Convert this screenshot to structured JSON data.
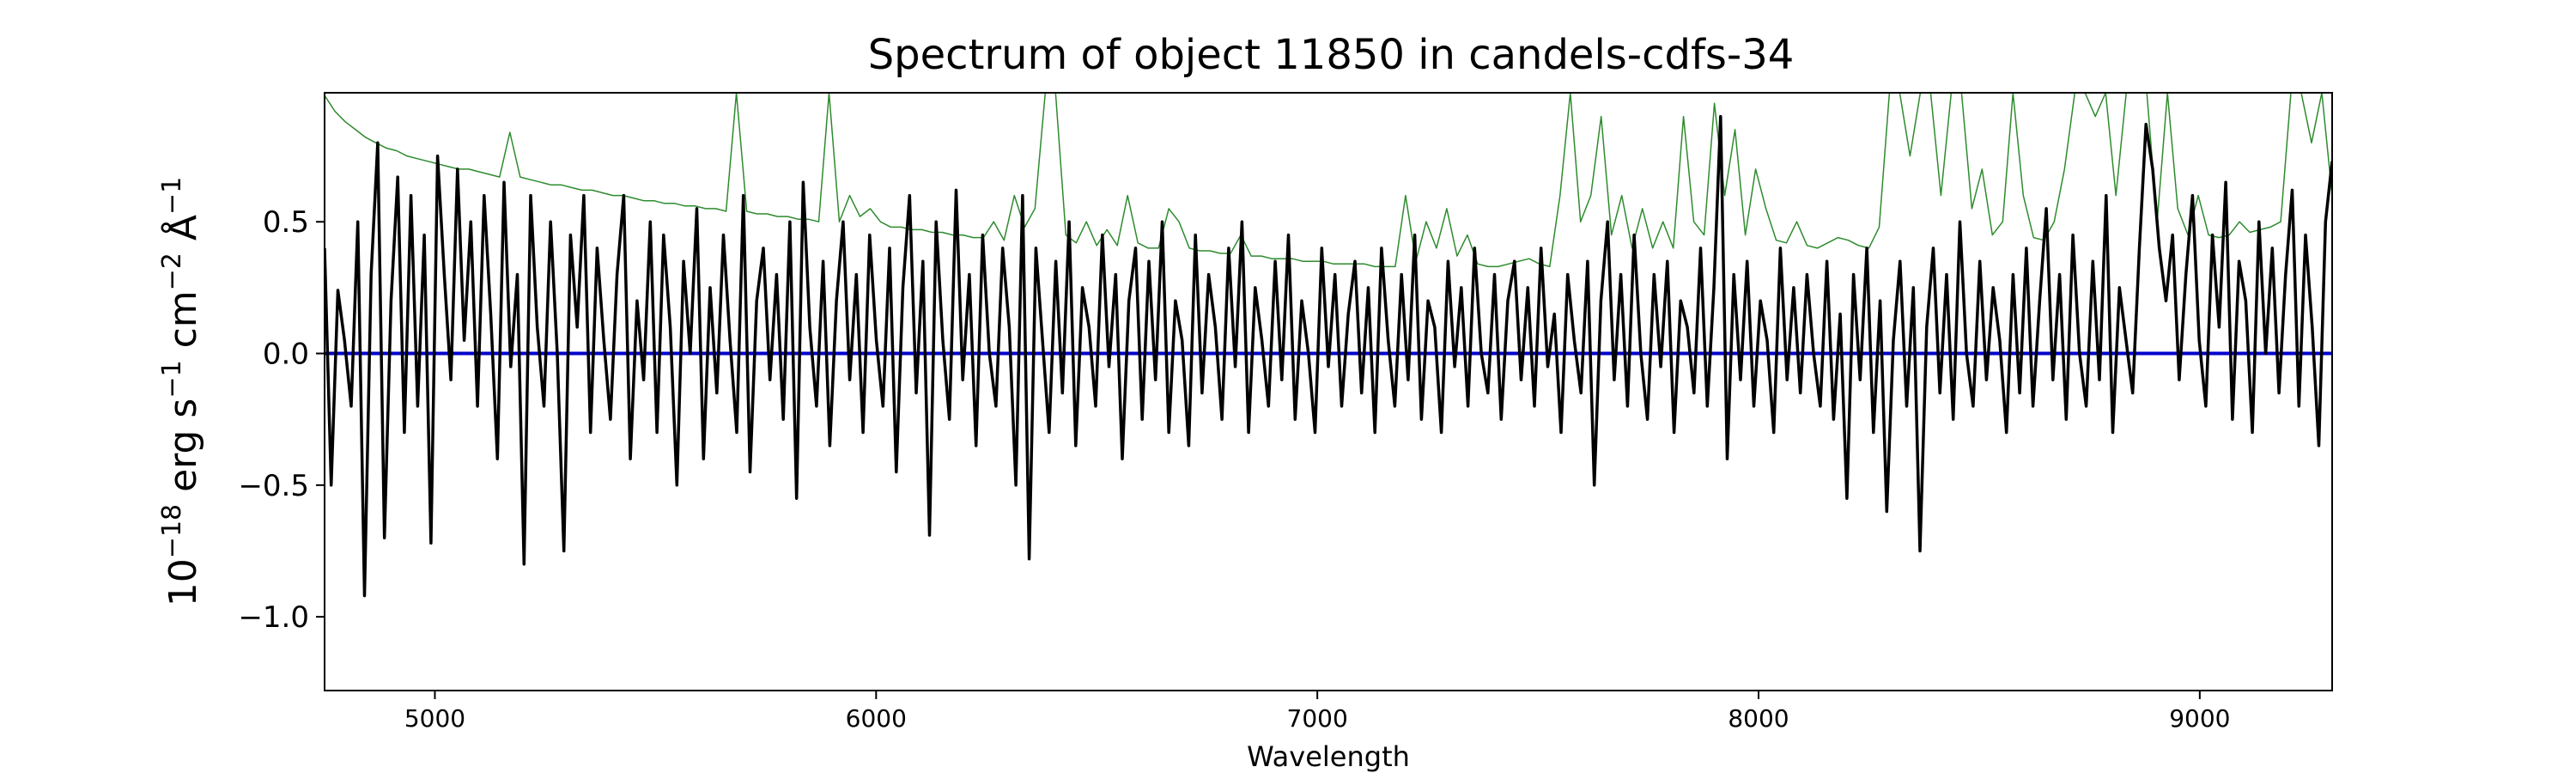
{
  "chart_data": {
    "type": "line",
    "title": "Spectrum of object 11850 in candels-cdfs-34",
    "xlabel": "Wavelength",
    "ylabel_parts": {
      "base": "10",
      "exp1": "−18",
      "unit1": " erg s",
      "exp2": "−1",
      "unit2": " cm",
      "exp3": "−2",
      "unit3": " Å",
      "exp4": "−1"
    },
    "xlim": [
      4750,
      9300
    ],
    "ylim": [
      -1.28,
      0.99
    ],
    "xticks": [
      5000,
      6000,
      7000,
      8000,
      9000
    ],
    "xtick_labels": [
      "5000",
      "6000",
      "7000",
      "8000",
      "9000"
    ],
    "yticks": [
      -1.0,
      -0.5,
      0.0,
      0.5
    ],
    "ytick_labels": [
      "−1.0",
      "−0.5",
      "0.0",
      "0.5"
    ],
    "grid": false,
    "series": [
      {
        "role": "flux",
        "color": "#000000",
        "x_start": 4750,
        "x_end": 9300,
        "values": [
          0.4,
          -0.5,
          0.24,
          0.05,
          -0.2,
          0.5,
          -0.92,
          0.3,
          0.8,
          -0.7,
          0.2,
          0.67,
          -0.3,
          0.6,
          -0.2,
          0.45,
          -0.72,
          0.75,
          0.3,
          -0.1,
          0.7,
          0.05,
          0.5,
          -0.2,
          0.6,
          0.15,
          -0.4,
          0.65,
          -0.05,
          0.3,
          -0.8,
          0.6,
          0.1,
          -0.2,
          0.5,
          0.0,
          -0.75,
          0.45,
          0.1,
          0.6,
          -0.3,
          0.4,
          0.05,
          -0.25,
          0.3,
          0.6,
          -0.4,
          0.2,
          -0.1,
          0.5,
          -0.3,
          0.45,
          0.1,
          -0.5,
          0.35,
          0.0,
          0.55,
          -0.4,
          0.25,
          -0.15,
          0.45,
          0.05,
          -0.3,
          0.6,
          -0.45,
          0.2,
          0.4,
          -0.1,
          0.3,
          -0.25,
          0.5,
          -0.55,
          0.65,
          0.1,
          -0.2,
          0.35,
          -0.35,
          0.2,
          0.5,
          -0.1,
          0.3,
          -0.3,
          0.45,
          0.05,
          -0.2,
          0.4,
          -0.45,
          0.25,
          0.6,
          -0.15,
          0.35,
          -0.69,
          0.5,
          0.05,
          -0.25,
          0.62,
          -0.1,
          0.3,
          -0.35,
          0.45,
          0.0,
          -0.2,
          0.4,
          0.1,
          -0.5,
          0.6,
          -0.78,
          0.4,
          0.05,
          -0.3,
          0.35,
          -0.15,
          0.5,
          -0.35,
          0.25,
          0.1,
          -0.2,
          0.45,
          -0.05,
          0.3,
          -0.4,
          0.2,
          0.4,
          -0.25,
          0.35,
          -0.1,
          0.5,
          -0.3,
          0.2,
          0.05,
          -0.35,
          0.45,
          -0.15,
          0.3,
          0.1,
          -0.25,
          0.4,
          -0.05,
          0.5,
          -0.3,
          0.25,
          0.05,
          -0.2,
          0.35,
          -0.1,
          0.45,
          -0.25,
          0.2,
          0.0,
          -0.3,
          0.4,
          -0.05,
          0.3,
          -0.2,
          0.15,
          0.35,
          -0.15,
          0.25,
          -0.3,
          0.4,
          0.05,
          -0.2,
          0.3,
          -0.1,
          0.45,
          -0.25,
          0.2,
          0.1,
          -0.3,
          0.35,
          -0.05,
          0.25,
          -0.2,
          0.4,
          0.0,
          -0.15,
          0.3,
          -0.25,
          0.2,
          0.35,
          -0.1,
          0.25,
          -0.2,
          0.4,
          -0.05,
          0.15,
          -0.3,
          0.3,
          0.05,
          -0.15,
          0.35,
          -0.5,
          0.2,
          0.5,
          -0.1,
          0.3,
          -0.2,
          0.45,
          0.0,
          -0.25,
          0.3,
          -0.05,
          0.35,
          -0.3,
          0.2,
          0.1,
          -0.15,
          0.4,
          -0.2,
          0.25,
          0.9,
          -0.4,
          0.3,
          -0.1,
          0.35,
          -0.2,
          0.2,
          0.05,
          -0.3,
          0.4,
          -0.1,
          0.25,
          -0.15,
          0.3,
          0.0,
          -0.2,
          0.35,
          -0.25,
          0.15,
          -0.55,
          0.3,
          -0.1,
          0.4,
          -0.3,
          0.2,
          -0.6,
          0.05,
          0.35,
          -0.2,
          0.25,
          -0.75,
          0.1,
          0.4,
          -0.15,
          0.3,
          -0.25,
          0.5,
          0.0,
          -0.2,
          0.35,
          -0.1,
          0.25,
          0.05,
          -0.3,
          0.3,
          -0.15,
          0.4,
          -0.2,
          0.2,
          0.55,
          -0.1,
          0.3,
          -0.25,
          0.45,
          0.0,
          -0.2,
          0.35,
          -0.1,
          0.6,
          -0.3,
          0.25,
          0.05,
          -0.15,
          0.4,
          0.87,
          0.7,
          0.4,
          0.2,
          0.45,
          -0.1,
          0.3,
          0.6,
          0.05,
          -0.2,
          0.45,
          0.1,
          0.65,
          -0.25,
          0.35,
          0.2,
          -0.3,
          0.5,
          0.0,
          0.4,
          -0.15,
          0.3,
          0.62,
          -0.2,
          0.45,
          0.1,
          -0.35,
          0.5,
          0.73
        ]
      },
      {
        "role": "error",
        "color": "#2e8b2e",
        "x_start": 4750,
        "x_end": 9300,
        "values": [
          0.98,
          0.92,
          0.88,
          0.85,
          0.82,
          0.8,
          0.78,
          0.77,
          0.75,
          0.74,
          0.73,
          0.72,
          0.71,
          0.7,
          0.7,
          0.69,
          0.68,
          0.67,
          0.84,
          0.67,
          0.66,
          0.65,
          0.64,
          0.64,
          0.63,
          0.62,
          0.62,
          0.61,
          0.6,
          0.6,
          0.59,
          0.58,
          0.58,
          0.57,
          0.57,
          0.56,
          0.56,
          0.55,
          0.55,
          0.54,
          0.99,
          0.54,
          0.53,
          0.53,
          0.52,
          0.52,
          0.51,
          0.51,
          0.5,
          0.99,
          0.5,
          0.6,
          0.52,
          0.55,
          0.5,
          0.48,
          0.48,
          0.47,
          0.47,
          0.46,
          0.46,
          0.45,
          0.45,
          0.44,
          0.44,
          0.5,
          0.43,
          0.6,
          0.48,
          0.55,
          0.99,
          0.99,
          0.45,
          0.42,
          0.5,
          0.41,
          0.47,
          0.41,
          0.6,
          0.42,
          0.4,
          0.4,
          0.55,
          0.5,
          0.4,
          0.39,
          0.39,
          0.38,
          0.38,
          0.45,
          0.37,
          0.37,
          0.36,
          0.36,
          0.36,
          0.35,
          0.35,
          0.35,
          0.34,
          0.34,
          0.34,
          0.34,
          0.33,
          0.33,
          0.33,
          0.6,
          0.35,
          0.5,
          0.4,
          0.55,
          0.37,
          0.45,
          0.34,
          0.33,
          0.33,
          0.34,
          0.35,
          0.36,
          0.34,
          0.33,
          0.6,
          0.99,
          0.5,
          0.6,
          0.9,
          0.45,
          0.6,
          0.4,
          0.55,
          0.4,
          0.5,
          0.4,
          0.9,
          0.5,
          0.45,
          0.95,
          0.6,
          0.85,
          0.45,
          0.7,
          0.55,
          0.43,
          0.42,
          0.5,
          0.41,
          0.4,
          0.42,
          0.44,
          0.43,
          0.41,
          0.4,
          0.48,
          0.99,
          0.99,
          0.75,
          0.99,
          0.99,
          0.6,
          0.99,
          0.99,
          0.55,
          0.7,
          0.45,
          0.5,
          0.99,
          0.6,
          0.44,
          0.43,
          0.5,
          0.7,
          0.99,
          0.99,
          0.9,
          0.99,
          0.6,
          0.99,
          0.99,
          0.99,
          0.5,
          0.99,
          0.55,
          0.45,
          0.6,
          0.45,
          0.44,
          0.45,
          0.5,
          0.46,
          0.47,
          0.48,
          0.5,
          0.99,
          0.99,
          0.8,
          0.99,
          0.6
        ]
      },
      {
        "role": "model",
        "color": "#0000cc",
        "x_start": 4750,
        "x_end": 9300,
        "values": [
          0.0,
          0.0
        ]
      }
    ]
  }
}
